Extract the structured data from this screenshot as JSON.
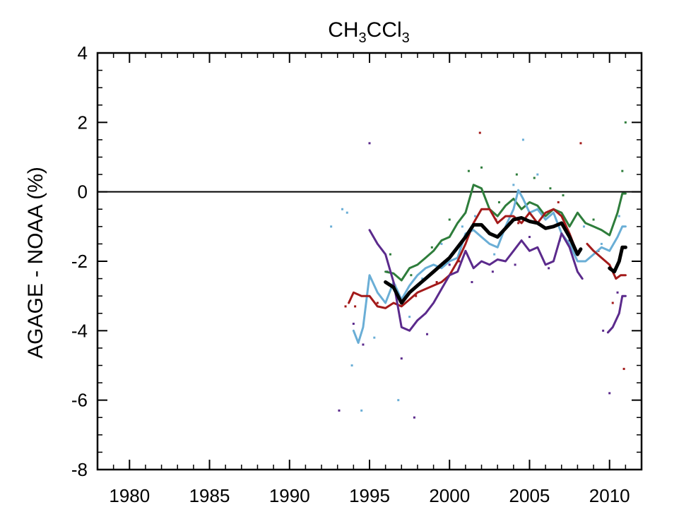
{
  "chart_data": {
    "type": "line",
    "title": {
      "main": "CH",
      "sub1": "3",
      "mid": "CCl",
      "sub2": "3"
    },
    "xlabel": "",
    "ylabel": "AGAGE - NOAA (%)",
    "xlim": [
      1978,
      2012
    ],
    "ylim": [
      -8,
      4
    ],
    "x_ticks": [
      1980,
      1985,
      1990,
      1995,
      2000,
      2005,
      2010
    ],
    "y_ticks": [
      4,
      2,
      0,
      -2,
      -4,
      -6,
      -8
    ],
    "x_tick_labels": [
      "1980",
      "1985",
      "1990",
      "1995",
      "2000",
      "2005",
      "2010"
    ],
    "y_tick_labels": [
      "4",
      "2",
      "0",
      "-2",
      "-4",
      "-6",
      "-8"
    ],
    "reference_line": 0,
    "grid": false,
    "legend": "none",
    "series": [
      {
        "color": "#2e7d3b",
        "values": [
          [
            1996.0,
            -2.3
          ],
          [
            1996.5,
            -2.35
          ],
          [
            1997.0,
            -2.55
          ],
          [
            1997.5,
            -2.2
          ],
          [
            1998.0,
            -2.1
          ],
          [
            1998.5,
            -1.9
          ],
          [
            1999.0,
            -1.7
          ],
          [
            1999.5,
            -1.4
          ],
          [
            2000.0,
            -1.3
          ],
          [
            2000.5,
            -0.9
          ],
          [
            2001.0,
            -0.6
          ],
          [
            2001.5,
            0.2
          ],
          [
            2002.0,
            0.1
          ],
          [
            2002.5,
            -0.5
          ],
          [
            2003.0,
            -0.7
          ],
          [
            2003.5,
            -0.4
          ],
          [
            2004.0,
            -0.2
          ],
          [
            2004.5,
            -0.5
          ],
          [
            2005.0,
            -0.3
          ],
          [
            2005.5,
            -0.4
          ],
          [
            2006.0,
            -0.7
          ],
          [
            2006.5,
            -0.5
          ],
          [
            2007.0,
            -0.6
          ],
          [
            2007.5,
            -1.0
          ],
          [
            2008.0,
            -0.6
          ],
          [
            2008.5,
            -0.9
          ],
          [
            2009.0,
            -1.0
          ],
          [
            2009.5,
            -1.1
          ],
          [
            2010.0,
            -1.25
          ],
          [
            2010.5,
            -0.6
          ],
          [
            2010.8,
            -0.05
          ],
          [
            2011.0,
            -0.05
          ]
        ]
      },
      {
        "color": "#6aaed6",
        "values": [
          [
            1994.0,
            -4.0
          ],
          [
            1994.3,
            -4.35
          ],
          [
            1994.6,
            -3.9
          ],
          [
            1995.0,
            -2.4
          ],
          [
            1995.5,
            -2.9
          ],
          [
            1996.0,
            -3.2
          ],
          [
            1996.5,
            -2.6
          ],
          [
            1997.0,
            -3.1
          ],
          [
            1997.5,
            -2.7
          ],
          [
            1998.0,
            -2.4
          ],
          [
            1998.5,
            -2.2
          ],
          [
            1999.0,
            -2.1
          ],
          [
            1999.5,
            -2.2
          ],
          [
            2000.0,
            -2.0
          ],
          [
            2000.5,
            -1.9
          ],
          [
            2001.0,
            -1.2
          ],
          [
            2001.5,
            -1.1
          ],
          [
            2002.0,
            -1.3
          ],
          [
            2002.5,
            -1.5
          ],
          [
            2003.0,
            -1.6
          ],
          [
            2003.5,
            -1.0
          ],
          [
            2004.0,
            -0.5
          ],
          [
            2004.3,
            0.05
          ],
          [
            2004.6,
            -0.2
          ],
          [
            2005.0,
            -0.6
          ],
          [
            2005.5,
            -0.5
          ],
          [
            2006.0,
            -0.8
          ],
          [
            2006.5,
            -0.6
          ],
          [
            2007.0,
            -1.2
          ],
          [
            2007.5,
            -1.5
          ],
          [
            2008.0,
            -2.0
          ],
          [
            2008.5,
            -2.0
          ],
          [
            2009.0,
            -1.8
          ],
          [
            2009.5,
            -1.6
          ],
          [
            2010.0,
            -1.7
          ],
          [
            2010.5,
            -1.3
          ],
          [
            2010.8,
            -1.0
          ],
          [
            2011.0,
            -1.0
          ]
        ]
      },
      {
        "color": "#a31a1a",
        "values": [
          [
            1993.7,
            -3.2
          ],
          [
            1994.0,
            -2.9
          ],
          [
            1994.5,
            -3.0
          ],
          [
            1995.0,
            -3.0
          ],
          [
            1995.5,
            -3.3
          ],
          [
            1996.0,
            -3.35
          ],
          [
            1996.5,
            -3.2
          ],
          [
            1997.0,
            -3.3
          ],
          [
            1997.5,
            -3.1
          ],
          [
            1998.0,
            -2.9
          ],
          [
            1998.5,
            -2.8
          ],
          [
            1999.0,
            -2.7
          ],
          [
            1999.5,
            -2.6
          ],
          [
            2000.0,
            -2.4
          ],
          [
            2000.5,
            -2.0
          ],
          [
            2001.0,
            -1.5
          ],
          [
            2001.5,
            -0.9
          ],
          [
            2002.0,
            -0.5
          ],
          [
            2002.5,
            -0.5
          ],
          [
            2003.0,
            -0.9
          ],
          [
            2003.5,
            -0.7
          ],
          [
            2004.0,
            -0.7
          ],
          [
            2004.5,
            -0.9
          ],
          [
            2005.0,
            -0.6
          ],
          [
            2005.5,
            -0.9
          ],
          [
            2006.0,
            -0.6
          ],
          [
            2006.5,
            -0.5
          ],
          [
            2007.0,
            -0.7
          ],
          [
            2007.5,
            -1.2
          ],
          [
            2008.0,
            -1.8
          ],
          null,
          [
            2008.6,
            -1.5
          ],
          [
            2009.0,
            -1.7
          ],
          [
            2009.5,
            -1.9
          ],
          [
            2010.0,
            -2.1
          ],
          [
            2010.4,
            -2.5
          ],
          [
            2010.7,
            -2.4
          ],
          [
            2011.0,
            -2.4
          ]
        ]
      },
      {
        "color": "#5b2a8c",
        "values": [
          [
            1995.0,
            -1.1
          ],
          [
            1995.5,
            -1.5
          ],
          [
            1996.0,
            -1.8
          ],
          [
            1996.5,
            -2.6
          ],
          [
            1997.0,
            -3.9
          ],
          [
            1997.5,
            -4.0
          ],
          [
            1998.0,
            -3.7
          ],
          [
            1998.5,
            -3.5
          ],
          [
            1999.0,
            -3.2
          ],
          [
            1999.5,
            -2.8
          ],
          [
            2000.0,
            -2.4
          ],
          [
            2000.5,
            -2.3
          ],
          [
            2001.0,
            -1.7
          ],
          [
            2001.5,
            -2.2
          ],
          [
            2002.0,
            -2.0
          ],
          [
            2002.5,
            -2.1
          ],
          [
            2003.0,
            -1.95
          ],
          [
            2003.5,
            -2.0
          ],
          [
            2004.0,
            -1.7
          ],
          [
            2004.5,
            -1.4
          ],
          [
            2005.0,
            -1.7
          ],
          [
            2005.5,
            -1.6
          ],
          [
            2006.0,
            -2.1
          ],
          [
            2006.5,
            -2.0
          ],
          [
            2007.0,
            -1.2
          ],
          [
            2007.5,
            -1.6
          ],
          [
            2008.0,
            -2.3
          ],
          [
            2008.3,
            -2.5
          ],
          null,
          [
            2009.9,
            -4.05
          ],
          [
            2010.2,
            -3.9
          ],
          [
            2010.6,
            -3.5
          ],
          [
            2010.8,
            -3.0
          ],
          [
            2011.0,
            -3.0
          ]
        ]
      },
      {
        "color": "#000000",
        "values": [
          [
            1996.0,
            -2.6
          ],
          [
            1996.5,
            -2.75
          ],
          [
            1997.0,
            -3.2
          ],
          [
            1997.5,
            -2.9
          ],
          [
            1998.0,
            -2.7
          ],
          [
            1998.5,
            -2.5
          ],
          [
            1999.0,
            -2.3
          ],
          [
            1999.5,
            -2.1
          ],
          [
            2000.0,
            -1.9
          ],
          [
            2000.5,
            -1.6
          ],
          [
            2001.0,
            -1.3
          ],
          [
            2001.5,
            -0.95
          ],
          [
            2002.0,
            -0.95
          ],
          [
            2002.5,
            -1.2
          ],
          [
            2003.0,
            -1.3
          ],
          [
            2003.5,
            -1.05
          ],
          [
            2004.0,
            -0.8
          ],
          [
            2004.5,
            -0.75
          ],
          [
            2005.0,
            -0.85
          ],
          [
            2005.5,
            -0.9
          ],
          [
            2006.0,
            -1.05
          ],
          [
            2006.5,
            -1.0
          ],
          [
            2007.0,
            -0.9
          ],
          [
            2007.5,
            -1.3
          ],
          [
            2008.0,
            -1.8
          ],
          [
            2008.2,
            -1.65
          ],
          null,
          [
            2010.0,
            -2.2
          ],
          [
            2010.3,
            -2.3
          ],
          [
            2010.6,
            -2.0
          ],
          [
            2010.8,
            -1.6
          ],
          [
            2011.0,
            -1.6
          ]
        ]
      }
    ],
    "scatter_points": [
      {
        "color": "#6aaed6",
        "points": [
          [
            1992.6,
            -1.0
          ],
          [
            1993.3,
            -0.5
          ],
          [
            1993.6,
            -0.6
          ],
          [
            1993.9,
            -5.0
          ],
          [
            1994.5,
            -6.3
          ],
          [
            1995.3,
            -4.2
          ],
          [
            1996.8,
            -6.0
          ],
          [
            1997.5,
            -3.6
          ],
          [
            1998.3,
            -2.5
          ],
          [
            1999.5,
            -1.5
          ],
          [
            2000.8,
            -1.0
          ],
          [
            2001.6,
            -0.7
          ],
          [
            2002.8,
            -1.8
          ],
          [
            2004.0,
            0.2
          ],
          [
            2004.6,
            1.5
          ],
          [
            2005.5,
            0.5
          ],
          [
            2006.9,
            -1.4
          ],
          [
            2008.4,
            -1.0
          ],
          [
            2009.5,
            -1.5
          ],
          [
            2010.6,
            -0.7
          ]
        ]
      },
      {
        "color": "#5b2a8c",
        "points": [
          [
            1993.1,
            -6.3
          ],
          [
            1994.0,
            -3.8
          ],
          [
            1994.6,
            -4.4
          ],
          [
            1995.0,
            1.4
          ],
          [
            1996.1,
            -2.3
          ],
          [
            1997.0,
            -4.8
          ],
          [
            1997.8,
            -6.5
          ],
          [
            1998.6,
            -4.1
          ],
          [
            2000.0,
            -2.1
          ],
          [
            2001.4,
            -2.6
          ],
          [
            2002.7,
            -2.3
          ],
          [
            2004.1,
            -2.1
          ],
          [
            2005.0,
            -1.3
          ],
          [
            2006.2,
            -2.2
          ],
          [
            2007.5,
            -1.4
          ],
          [
            2009.6,
            -4.0
          ],
          [
            2010.0,
            -5.8
          ],
          [
            2010.5,
            -2.9
          ]
        ]
      },
      {
        "color": "#a31a1a",
        "points": [
          [
            1993.5,
            -3.3
          ],
          [
            1994.1,
            -3.3
          ],
          [
            1995.5,
            -3.2
          ],
          [
            1996.6,
            -2.7
          ],
          [
            1997.9,
            -3.0
          ],
          [
            1999.2,
            -2.6
          ],
          [
            2000.6,
            -2.0
          ],
          [
            2001.9,
            1.7
          ],
          [
            2002.9,
            -0.8
          ],
          [
            2004.3,
            -0.9
          ],
          [
            2005.8,
            -1.0
          ],
          [
            2006.8,
            -0.3
          ],
          [
            2008.2,
            1.4
          ],
          [
            2009.3,
            -1.7
          ],
          [
            2010.2,
            -3.2
          ],
          [
            2010.9,
            -5.1
          ]
        ]
      },
      {
        "color": "#2e7d3b",
        "points": [
          [
            1996.3,
            -1.8
          ],
          [
            1997.6,
            -2.4
          ],
          [
            1998.9,
            -1.6
          ],
          [
            2000.0,
            -0.8
          ],
          [
            2001.2,
            0.6
          ],
          [
            2002.0,
            0.7
          ],
          [
            2003.1,
            -0.3
          ],
          [
            2004.2,
            0.5
          ],
          [
            2005.3,
            0.4
          ],
          [
            2006.3,
            0.1
          ],
          [
            2007.1,
            -0.1
          ],
          [
            2009.0,
            -0.8
          ],
          [
            2010.8,
            0.6
          ],
          [
            2011.0,
            2.0
          ]
        ]
      }
    ]
  }
}
